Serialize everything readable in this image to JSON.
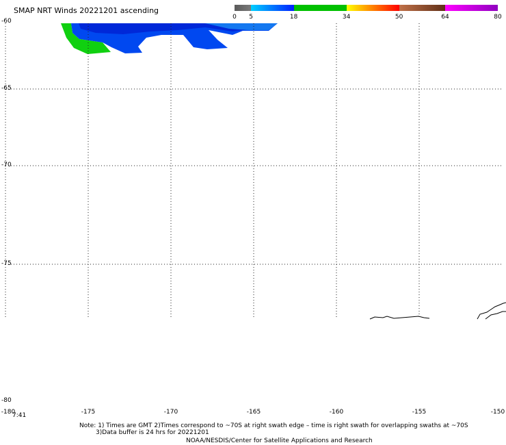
{
  "title": "SMAP NRT Winds 20221201 ascending",
  "colorbar": {
    "tick_labels": [
      "0",
      "5",
      "18",
      "34",
      "50",
      "64",
      "80"
    ],
    "segments": [
      {
        "from": 0,
        "to": 5,
        "color": "#5a5a5a",
        "end_color": "#7a7a7a"
      },
      {
        "from": 5,
        "to": 18,
        "color": "#00d0ff",
        "end_color": "#0020ff"
      },
      {
        "from": 18,
        "to": 34,
        "color": "#00c000",
        "end_color": "#00c000"
      },
      {
        "from": 34,
        "to": 50,
        "color": "#ffff00",
        "end_color": "#ff0000"
      },
      {
        "from": 50,
        "to": 64,
        "color": "#c07048",
        "end_color": "#603018"
      },
      {
        "from": 64,
        "to": 80,
        "color": "#ff00ff",
        "end_color": "#9000c0"
      }
    ]
  },
  "map": {
    "lat_labels": [
      "-60",
      "-65",
      "-70",
      "-75",
      "-80"
    ],
    "lon_labels": [
      "-180",
      "-175",
      "-170",
      "-165",
      "-160",
      "-155",
      "-150"
    ],
    "time_label": "7:41",
    "grid": "dotted"
  },
  "notes": {
    "line1": "Note: 1) Times are GMT 2)Times correspond to ~70S at right swath edge – time is right swath for overlapping swaths at ~70S",
    "line2": "3)Data buffer is 24 hrs for 20221201",
    "line3": "NOAA/NESDIS/Center for Satellite Applications and Research"
  }
}
